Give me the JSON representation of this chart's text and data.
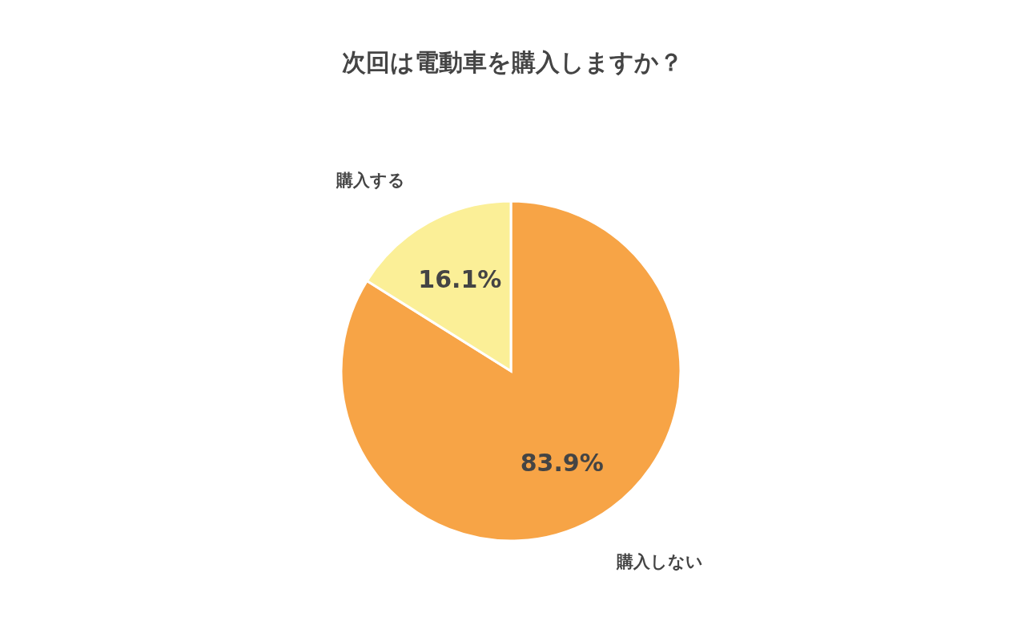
{
  "chart_data": {
    "type": "pie",
    "title": "次回は電動車を購入しますか？",
    "categories": [
      "購入しない",
      "購入する"
    ],
    "values": [
      83.9,
      16.1
    ],
    "colors": [
      "#f7a446",
      "#fbef97"
    ],
    "value_labels": [
      "83.9%",
      "16.1%"
    ]
  }
}
